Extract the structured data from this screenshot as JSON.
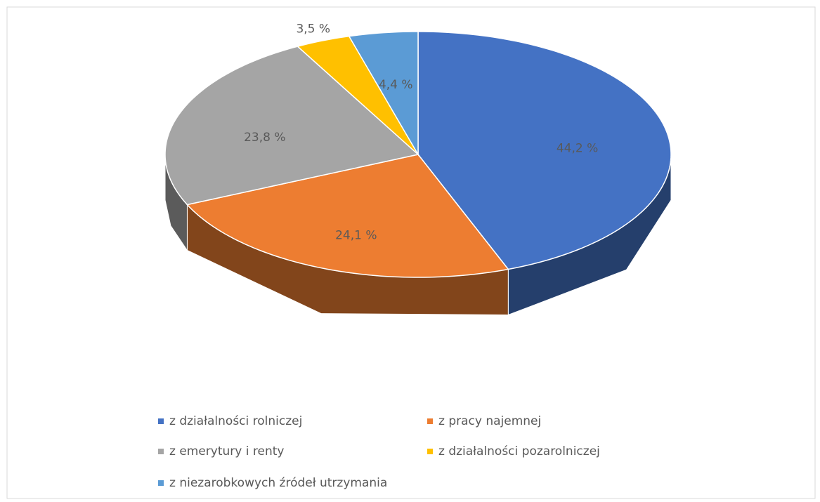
{
  "chart_data": {
    "type": "pie",
    "categories": [
      "z działalności rolniczej",
      "z pracy najemnej",
      "z emerytury i renty",
      "z działalności pozarolniczej",
      "z niezarobkowych źródeł utrzymania"
    ],
    "values": [
      44.2,
      24.1,
      23.8,
      3.5,
      4.4
    ],
    "value_labels": [
      "44,2 %",
      "24,1 %",
      "23,8 %",
      "3,5 %",
      "4,4 %"
    ],
    "colors": [
      "#4472c4",
      "#ed7d31",
      "#a5a5a5",
      "#ffc000",
      "#5b9bd5"
    ],
    "legend": "bottom"
  }
}
